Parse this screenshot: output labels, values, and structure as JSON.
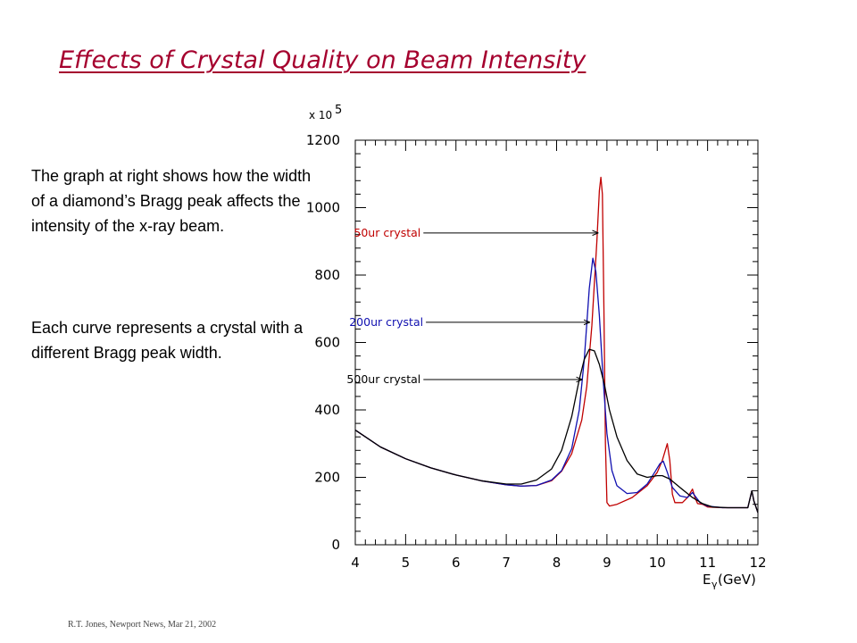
{
  "title": "Effects of Crystal Quality on Beam Intensity",
  "paragraphs": [
    "The graph at right shows how the width of a diamond’s Bragg peak affects the intensity of the x-ray beam.",
    "Each curve represents a crystal with a different Bragg peak width."
  ],
  "footer": "R.T. Jones, Newport News, Mar 21, 2002",
  "chart_data": {
    "type": "line",
    "multiplier_label": "x 10",
    "multiplier_exponent": "5",
    "xlabel": "E",
    "xlabel_subscript": "γ",
    "xlabel_unit": " (GeV)",
    "xlim": [
      4,
      12
    ],
    "ylim": [
      0,
      1200
    ],
    "x_ticks": [
      4,
      5,
      6,
      7,
      8,
      9,
      10,
      11,
      12
    ],
    "y_ticks": [
      0,
      200,
      400,
      600,
      800,
      1000,
      1200
    ],
    "grid": false,
    "series": [
      {
        "name": "50ur crystal",
        "color": "#c00000",
        "label_pos": [
          5.3,
          925
        ],
        "arrow_to": [
          8.82,
          925
        ],
        "points": [
          [
            4.0,
            340
          ],
          [
            4.5,
            290
          ],
          [
            5.0,
            255
          ],
          [
            5.5,
            228
          ],
          [
            6.0,
            207
          ],
          [
            6.5,
            190
          ],
          [
            7.0,
            178
          ],
          [
            7.3,
            174
          ],
          [
            7.6,
            176
          ],
          [
            7.9,
            190
          ],
          [
            8.1,
            218
          ],
          [
            8.3,
            270
          ],
          [
            8.5,
            370
          ],
          [
            8.6,
            470
          ],
          [
            8.7,
            650
          ],
          [
            8.8,
            900
          ],
          [
            8.85,
            1050
          ],
          [
            8.88,
            1090
          ],
          [
            8.91,
            1040
          ],
          [
            8.94,
            700
          ],
          [
            8.97,
            300
          ],
          [
            9.0,
            125
          ],
          [
            9.05,
            115
          ],
          [
            9.2,
            120
          ],
          [
            9.5,
            140
          ],
          [
            9.8,
            175
          ],
          [
            10.0,
            215
          ],
          [
            10.1,
            250
          ],
          [
            10.2,
            300
          ],
          [
            10.25,
            250
          ],
          [
            10.3,
            150
          ],
          [
            10.35,
            125
          ],
          [
            10.5,
            125
          ],
          [
            10.6,
            140
          ],
          [
            10.7,
            165
          ],
          [
            10.75,
            140
          ],
          [
            10.8,
            122
          ],
          [
            10.9,
            120
          ],
          [
            11.0,
            112
          ],
          [
            11.3,
            110
          ],
          [
            11.8,
            110
          ],
          [
            11.88,
            160
          ],
          [
            11.92,
            130
          ],
          [
            12.0,
            95
          ]
        ]
      },
      {
        "name": "200ur crystal",
        "color": "#1010b0",
        "label_pos": [
          5.35,
          660
        ],
        "arrow_to": [
          8.65,
          660
        ],
        "points": [
          [
            4.0,
            340
          ],
          [
            4.5,
            290
          ],
          [
            5.0,
            255
          ],
          [
            5.5,
            228
          ],
          [
            6.0,
            207
          ],
          [
            6.5,
            190
          ],
          [
            7.0,
            178
          ],
          [
            7.3,
            174
          ],
          [
            7.6,
            176
          ],
          [
            7.9,
            192
          ],
          [
            8.1,
            220
          ],
          [
            8.3,
            285
          ],
          [
            8.45,
            400
          ],
          [
            8.55,
            550
          ],
          [
            8.65,
            760
          ],
          [
            8.72,
            850
          ],
          [
            8.78,
            810
          ],
          [
            8.85,
            680
          ],
          [
            8.92,
            500
          ],
          [
            9.0,
            330
          ],
          [
            9.1,
            220
          ],
          [
            9.2,
            175
          ],
          [
            9.4,
            152
          ],
          [
            9.6,
            155
          ],
          [
            9.8,
            180
          ],
          [
            9.95,
            215
          ],
          [
            10.05,
            240
          ],
          [
            10.12,
            248
          ],
          [
            10.2,
            215
          ],
          [
            10.3,
            170
          ],
          [
            10.45,
            145
          ],
          [
            10.6,
            140
          ],
          [
            10.7,
            155
          ],
          [
            10.75,
            145
          ],
          [
            10.85,
            125
          ],
          [
            11.0,
            115
          ],
          [
            11.3,
            110
          ],
          [
            11.8,
            110
          ],
          [
            11.88,
            160
          ],
          [
            11.92,
            130
          ],
          [
            12.0,
            95
          ]
        ]
      },
      {
        "name": "500ur crystal",
        "color": "#000000",
        "label_pos": [
          5.3,
          490
        ],
        "arrow_to": [
          8.5,
          490
        ],
        "points": [
          [
            4.0,
            340
          ],
          [
            4.5,
            290
          ],
          [
            5.0,
            255
          ],
          [
            5.5,
            228
          ],
          [
            6.0,
            207
          ],
          [
            6.5,
            190
          ],
          [
            7.0,
            180
          ],
          [
            7.3,
            180
          ],
          [
            7.6,
            192
          ],
          [
            7.9,
            225
          ],
          [
            8.1,
            280
          ],
          [
            8.3,
            380
          ],
          [
            8.45,
            490
          ],
          [
            8.55,
            550
          ],
          [
            8.65,
            580
          ],
          [
            8.75,
            575
          ],
          [
            8.85,
            535
          ],
          [
            8.95,
            475
          ],
          [
            9.05,
            400
          ],
          [
            9.2,
            320
          ],
          [
            9.4,
            250
          ],
          [
            9.6,
            210
          ],
          [
            9.8,
            200
          ],
          [
            10.0,
            205
          ],
          [
            10.1,
            205
          ],
          [
            10.25,
            195
          ],
          [
            10.45,
            170
          ],
          [
            10.7,
            140
          ],
          [
            10.9,
            122
          ],
          [
            11.1,
            112
          ],
          [
            11.4,
            110
          ],
          [
            11.8,
            110
          ],
          [
            11.88,
            160
          ],
          [
            11.92,
            130
          ],
          [
            12.0,
            95
          ]
        ]
      }
    ]
  }
}
